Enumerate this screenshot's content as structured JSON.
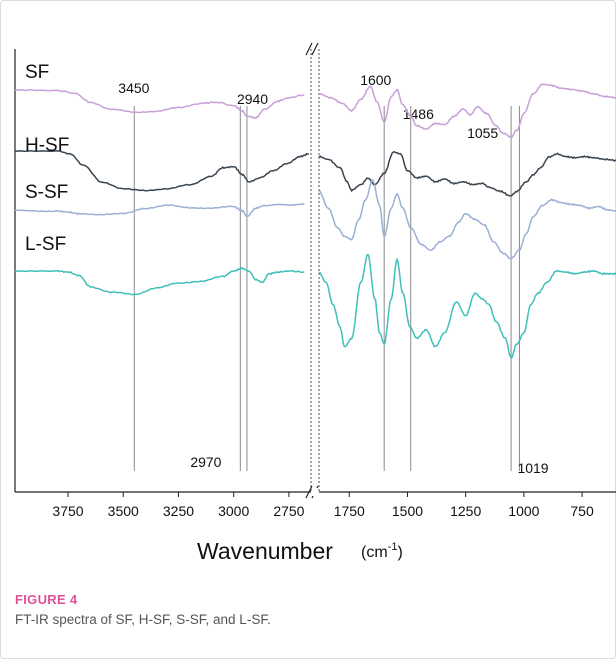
{
  "chart_data": {
    "type": "line",
    "xlabel": "Wavenumber",
    "xunit": "(cm-1)",
    "xunit_base": "(cm",
    "xunit_sup": "-1",
    "xunit_close": ")",
    "x_reversed": true,
    "axis_break": true,
    "panels": [
      {
        "xlim": [
          3990,
          2650
        ],
        "ticks": [
          3750,
          3500,
          3250,
          3000,
          2750
        ]
      },
      {
        "xlim": [
          1880,
          600
        ],
        "ticks": [
          1750,
          1500,
          1250,
          1000,
          750
        ]
      }
    ],
    "series": [
      {
        "name": "SF",
        "color": "#c8a0d8",
        "base": 1.0,
        "points": [
          [
            3990,
            0.02
          ],
          [
            3800,
            0.01
          ],
          [
            3720,
            -0.04
          ],
          [
            3650,
            -0.2
          ],
          [
            3550,
            -0.33
          ],
          [
            3450,
            -0.38
          ],
          [
            3350,
            -0.36
          ],
          [
            3250,
            -0.3
          ],
          [
            3150,
            -0.22
          ],
          [
            3080,
            -0.2
          ],
          [
            3000,
            -0.26
          ],
          [
            2960,
            -0.36
          ],
          [
            2940,
            -0.45
          ],
          [
            2900,
            -0.48
          ],
          [
            2860,
            -0.32
          ],
          [
            2800,
            -0.18
          ],
          [
            2750,
            -0.12
          ],
          [
            2680,
            -0.07
          ],
          [
            1880,
            -0.05
          ],
          [
            1830,
            -0.12
          ],
          [
            1780,
            -0.22
          ],
          [
            1740,
            -0.35
          ],
          [
            1700,
            -0.15
          ],
          [
            1660,
            0.08
          ],
          [
            1630,
            -0.2
          ],
          [
            1600,
            -0.55
          ],
          [
            1570,
            -0.1
          ],
          [
            1545,
            0.02
          ],
          [
            1520,
            -0.25
          ],
          [
            1486,
            -0.45
          ],
          [
            1460,
            -0.62
          ],
          [
            1420,
            -0.68
          ],
          [
            1380,
            -0.58
          ],
          [
            1340,
            -0.6
          ],
          [
            1300,
            -0.45
          ],
          [
            1260,
            -0.32
          ],
          [
            1230,
            -0.42
          ],
          [
            1200,
            -0.28
          ],
          [
            1160,
            -0.4
          ],
          [
            1120,
            -0.62
          ],
          [
            1090,
            -0.75
          ],
          [
            1055,
            -0.82
          ],
          [
            1030,
            -0.7
          ],
          [
            1000,
            -0.4
          ],
          [
            960,
            -0.05
          ],
          [
            920,
            0.12
          ],
          [
            880,
            0.1
          ],
          [
            840,
            0.05
          ],
          [
            800,
            0.03
          ],
          [
            750,
            0.0
          ],
          [
            700,
            -0.05
          ],
          [
            650,
            -0.1
          ],
          [
            600,
            -0.12
          ]
        ]
      },
      {
        "name": "H-SF",
        "color": "#3a4550",
        "base": 0.0,
        "points": [
          [
            3990,
            0.0
          ],
          [
            3800,
            0.0
          ],
          [
            3740,
            -0.05
          ],
          [
            3680,
            -0.25
          ],
          [
            3600,
            -0.55
          ],
          [
            3500,
            -0.68
          ],
          [
            3400,
            -0.7
          ],
          [
            3300,
            -0.68
          ],
          [
            3200,
            -0.6
          ],
          [
            3100,
            -0.45
          ],
          [
            3050,
            -0.3
          ],
          [
            3000,
            -0.28
          ],
          [
            2960,
            -0.42
          ],
          [
            2930,
            -0.55
          ],
          [
            2880,
            -0.48
          ],
          [
            2820,
            -0.35
          ],
          [
            2760,
            -0.22
          ],
          [
            2700,
            -0.1
          ],
          [
            2660,
            -0.05
          ],
          [
            1880,
            -0.1
          ],
          [
            1840,
            -0.15
          ],
          [
            1790,
            -0.3
          ],
          [
            1760,
            -0.55
          ],
          [
            1740,
            -0.7
          ],
          [
            1700,
            -0.6
          ],
          [
            1670,
            -0.48
          ],
          [
            1640,
            -0.6
          ],
          [
            1600,
            -0.4
          ],
          [
            1560,
            -0.02
          ],
          [
            1530,
            -0.05
          ],
          [
            1500,
            -0.35
          ],
          [
            1460,
            -0.48
          ],
          [
            1420,
            -0.45
          ],
          [
            1380,
            -0.55
          ],
          [
            1340,
            -0.5
          ],
          [
            1300,
            -0.58
          ],
          [
            1260,
            -0.55
          ],
          [
            1220,
            -0.6
          ],
          [
            1180,
            -0.58
          ],
          [
            1150,
            -0.65
          ],
          [
            1100,
            -0.72
          ],
          [
            1060,
            -0.8
          ],
          [
            1030,
            -0.72
          ],
          [
            990,
            -0.55
          ],
          [
            960,
            -0.42
          ],
          [
            930,
            -0.3
          ],
          [
            890,
            -0.1
          ],
          [
            860,
            -0.05
          ],
          [
            820,
            -0.1
          ],
          [
            780,
            -0.12
          ],
          [
            740,
            -0.1
          ],
          [
            700,
            -0.12
          ],
          [
            650,
            -0.15
          ],
          [
            600,
            -0.17
          ]
        ]
      },
      {
        "name": "S-SF",
        "color": "#9ab0d4",
        "base": -1.0,
        "points": [
          [
            3990,
            0.02
          ],
          [
            3900,
            0.0
          ],
          [
            3800,
            0.0
          ],
          [
            3750,
            -0.02
          ],
          [
            3700,
            -0.05
          ],
          [
            3600,
            -0.06
          ],
          [
            3500,
            -0.05
          ],
          [
            3400,
            0.05
          ],
          [
            3300,
            0.1
          ],
          [
            3200,
            0.06
          ],
          [
            3100,
            0.05
          ],
          [
            3000,
            0.08
          ],
          [
            2960,
            0.0
          ],
          [
            2940,
            -0.1
          ],
          [
            2900,
            0.05
          ],
          [
            2860,
            0.1
          ],
          [
            2800,
            0.12
          ],
          [
            2740,
            0.1
          ],
          [
            2680,
            0.12
          ],
          [
            1880,
            0.35
          ],
          [
            1840,
            0.05
          ],
          [
            1800,
            -0.3
          ],
          [
            1770,
            -0.45
          ],
          [
            1740,
            -0.5
          ],
          [
            1710,
            -0.15
          ],
          [
            1680,
            0.2
          ],
          [
            1650,
            0.55
          ],
          [
            1620,
            0.1
          ],
          [
            1600,
            -0.45
          ],
          [
            1570,
            0.05
          ],
          [
            1545,
            0.3
          ],
          [
            1520,
            0.05
          ],
          [
            1486,
            -0.3
          ],
          [
            1440,
            -0.6
          ],
          [
            1400,
            -0.7
          ],
          [
            1360,
            -0.55
          ],
          [
            1320,
            -0.45
          ],
          [
            1280,
            -0.2
          ],
          [
            1250,
            -0.05
          ],
          [
            1210,
            -0.15
          ],
          [
            1170,
            -0.25
          ],
          [
            1130,
            -0.55
          ],
          [
            1090,
            -0.75
          ],
          [
            1055,
            -0.85
          ],
          [
            1020,
            -0.7
          ],
          [
            990,
            -0.4
          ],
          [
            960,
            -0.1
          ],
          [
            920,
            0.1
          ],
          [
            880,
            0.2
          ],
          [
            840,
            0.15
          ],
          [
            800,
            0.12
          ],
          [
            760,
            0.1
          ],
          [
            720,
            0.05
          ],
          [
            680,
            0.08
          ],
          [
            640,
            0.02
          ],
          [
            600,
            0.0
          ]
        ]
      },
      {
        "name": "L-SF",
        "color": "#40c0b8",
        "base": -2.0,
        "points": [
          [
            3990,
            0.0
          ],
          [
            3800,
            0.0
          ],
          [
            3750,
            -0.02
          ],
          [
            3700,
            -0.08
          ],
          [
            3650,
            -0.28
          ],
          [
            3550,
            -0.38
          ],
          [
            3450,
            -0.42
          ],
          [
            3350,
            -0.3
          ],
          [
            3250,
            -0.22
          ],
          [
            3150,
            -0.18
          ],
          [
            3050,
            -0.1
          ],
          [
            3000,
            0.0
          ],
          [
            2960,
            0.05
          ],
          [
            2930,
            0.0
          ],
          [
            2900,
            -0.15
          ],
          [
            2870,
            -0.2
          ],
          [
            2840,
            -0.05
          ],
          [
            2800,
            -0.02
          ],
          [
            2750,
            0.0
          ],
          [
            2680,
            -0.02
          ],
          [
            1880,
            -0.02
          ],
          [
            1850,
            -0.2
          ],
          [
            1820,
            -0.6
          ],
          [
            1790,
            -1.0
          ],
          [
            1770,
            -1.35
          ],
          [
            1740,
            -1.2
          ],
          [
            1700,
            -0.2
          ],
          [
            1670,
            0.3
          ],
          [
            1640,
            -0.5
          ],
          [
            1620,
            -1.1
          ],
          [
            1600,
            -1.3
          ],
          [
            1570,
            -0.5
          ],
          [
            1545,
            0.2
          ],
          [
            1520,
            -0.4
          ],
          [
            1490,
            -1.0
          ],
          [
            1460,
            -1.2
          ],
          [
            1420,
            -1.05
          ],
          [
            1380,
            -1.35
          ],
          [
            1340,
            -1.1
          ],
          [
            1290,
            -0.55
          ],
          [
            1250,
            -0.8
          ],
          [
            1210,
            -0.4
          ],
          [
            1180,
            -0.5
          ],
          [
            1150,
            -0.6
          ],
          [
            1120,
            -0.9
          ],
          [
            1080,
            -1.2
          ],
          [
            1055,
            -1.55
          ],
          [
            1030,
            -1.3
          ],
          [
            1000,
            -1.1
          ],
          [
            970,
            -0.6
          ],
          [
            940,
            -0.4
          ],
          [
            900,
            -0.2
          ],
          [
            860,
            0.0
          ],
          [
            820,
            -0.02
          ],
          [
            780,
            -0.05
          ],
          [
            740,
            -0.02
          ],
          [
            700,
            0.0
          ],
          [
            660,
            -0.05
          ],
          [
            620,
            -0.05
          ],
          [
            600,
            -0.05
          ]
        ]
      }
    ],
    "peak_lines": [
      {
        "x": 3450,
        "label": "3450",
        "label_pos": "top"
      },
      {
        "x": 2970,
        "label": "2970",
        "label_pos": "bottom"
      },
      {
        "x": 2940,
        "label": "2940",
        "label_pos": "top"
      },
      {
        "x": 1600,
        "label": "1600",
        "label_pos": "top"
      },
      {
        "x": 1486,
        "label": "1486",
        "label_pos": "top"
      },
      {
        "x": 1055,
        "label": "1055",
        "label_pos": "top"
      },
      {
        "x": 1019,
        "label": "1019",
        "label_pos": "bottom"
      }
    ]
  },
  "caption": {
    "label": "FIGURE 4",
    "text": "FT-IR spectra of SF, H-SF, S-SF, and L-SF."
  }
}
